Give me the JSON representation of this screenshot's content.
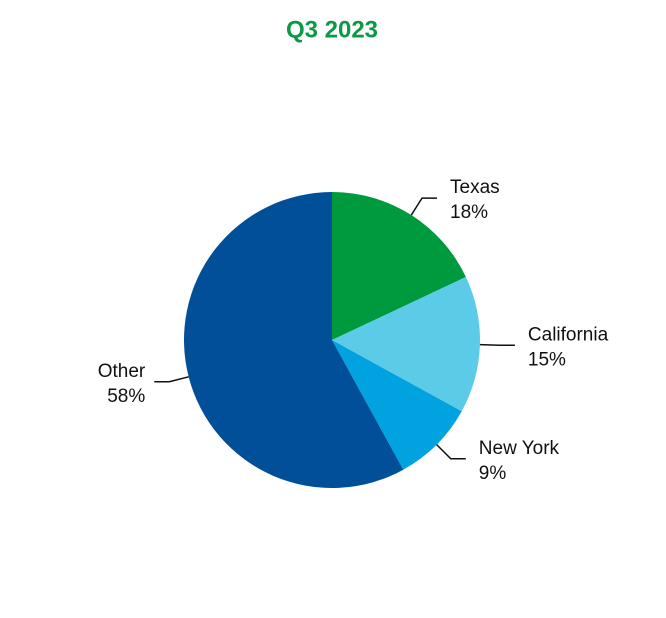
{
  "chart_data": {
    "type": "pie",
    "title": "Q3 2023",
    "categories": [
      "Texas",
      "California",
      "New York",
      "Other"
    ],
    "values": [
      18,
      15,
      9,
      58
    ],
    "value_labels": [
      "18%",
      "15%",
      "9%",
      "58%"
    ],
    "colors": [
      "#009a3e",
      "#5bcbe8",
      "#00a3e0",
      "#004f98"
    ]
  }
}
